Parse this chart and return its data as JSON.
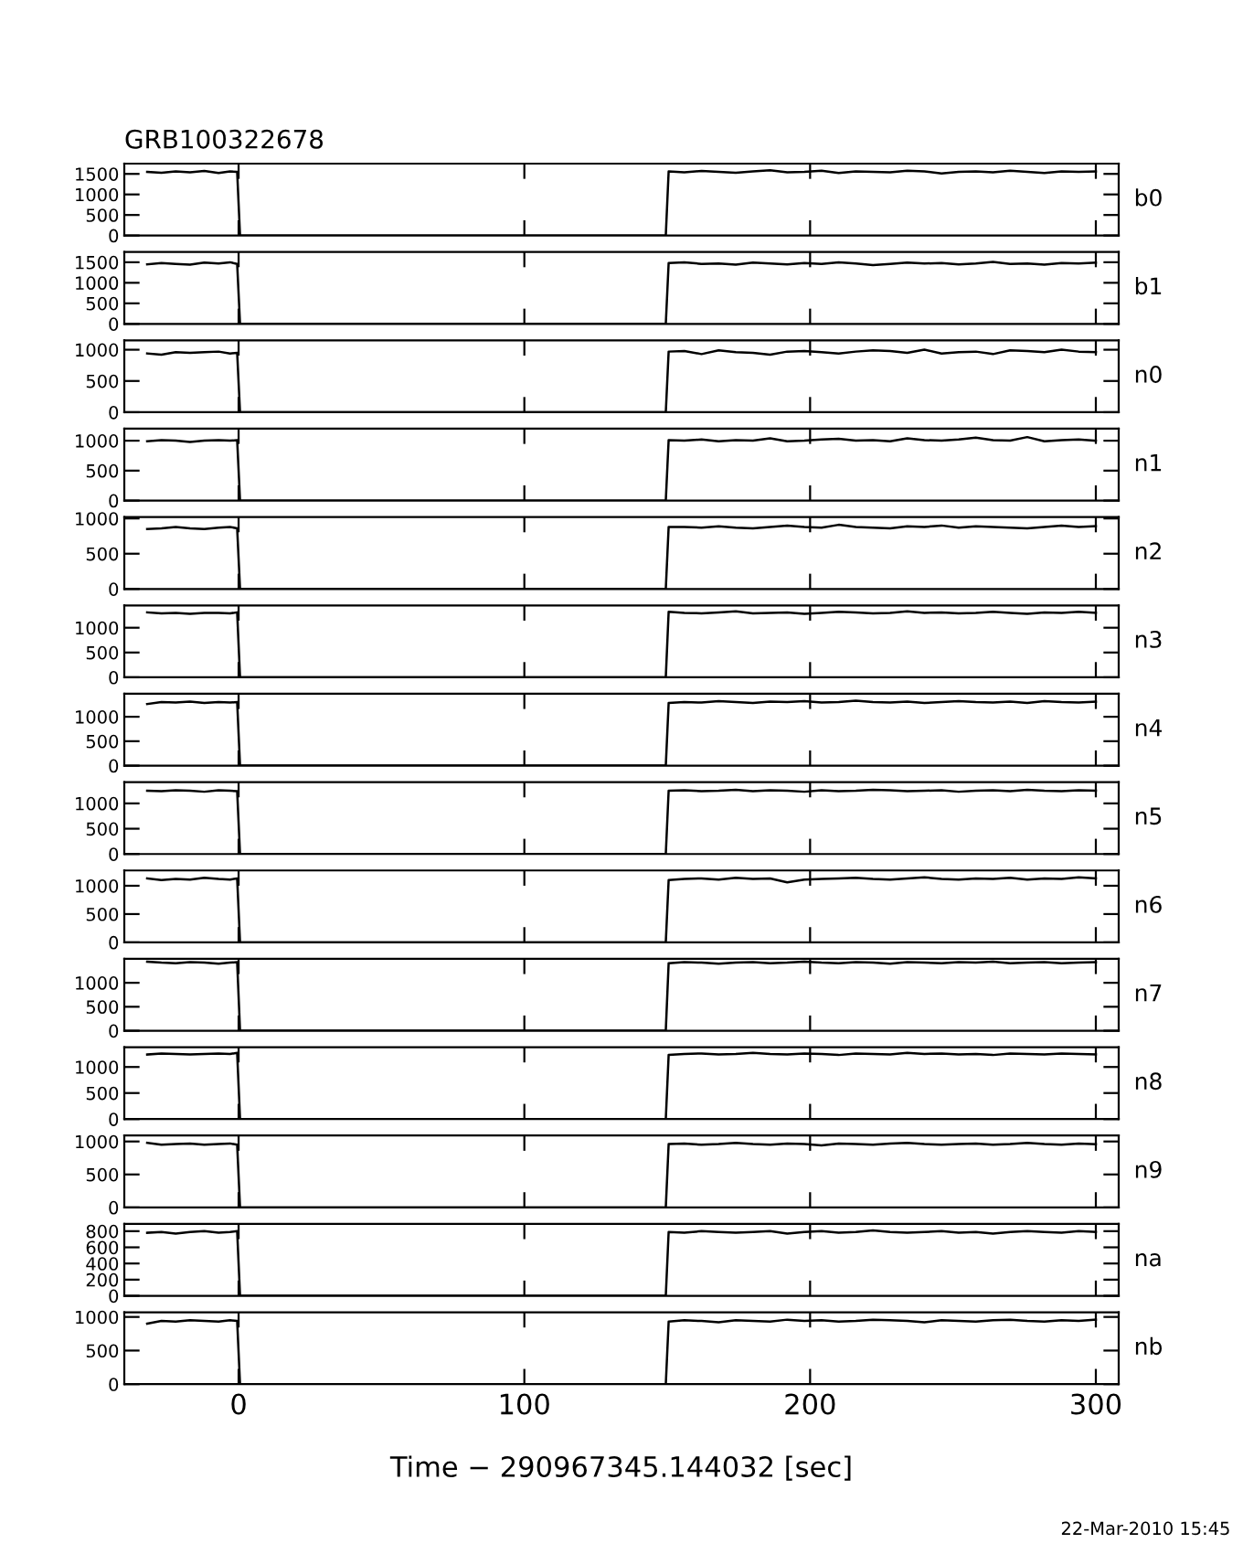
{
  "chart_data": [
    {
      "type": "line",
      "title": "GRB100322678",
      "ylabel": "b0",
      "color": "#000000",
      "tick_labels": "y",
      "xlim": [
        -40,
        308
      ],
      "xticks": [
        0,
        100,
        200,
        300
      ],
      "ylim": [
        0,
        1750
      ],
      "yticks": [
        0,
        500,
        1000,
        1500
      ],
      "x": [
        -32,
        -27,
        -22,
        -17,
        -12,
        -7,
        -3,
        -0.5,
        0.5,
        149.5,
        150.5,
        156,
        162,
        168,
        174,
        180,
        186,
        192,
        198,
        204,
        210,
        216,
        222,
        228,
        234,
        240,
        246,
        252,
        258,
        264,
        270,
        276,
        282,
        288,
        294,
        300
      ],
      "values": [
        1550,
        1530,
        1560,
        1540,
        1570,
        1520,
        1560,
        1550,
        0,
        0,
        1560,
        1540,
        1570,
        1550,
        1530,
        1560,
        1590,
        1540,
        1550,
        1580,
        1520,
        1560,
        1550,
        1540,
        1580,
        1560,
        1510,
        1550,
        1560,
        1540,
        1580,
        1550,
        1520,
        1560,
        1550,
        1560
      ]
    },
    {
      "type": "line",
      "ylabel": "b1",
      "color": "#000000",
      "tick_labels": "y",
      "xlim": [
        -40,
        308
      ],
      "xticks": [
        0,
        100,
        200,
        300
      ],
      "ylim": [
        0,
        1750
      ],
      "yticks": [
        0,
        500,
        1000,
        1500
      ],
      "x": [
        -32,
        -27,
        -22,
        -17,
        -12,
        -7,
        -3,
        -0.5,
        0.5,
        149.5,
        150.5,
        156,
        162,
        168,
        174,
        180,
        186,
        192,
        198,
        204,
        210,
        216,
        222,
        228,
        234,
        240,
        246,
        252,
        258,
        264,
        270,
        276,
        282,
        288,
        294,
        300
      ],
      "values": [
        1450,
        1480,
        1460,
        1440,
        1490,
        1470,
        1500,
        1460,
        0,
        0,
        1480,
        1500,
        1460,
        1470,
        1440,
        1490,
        1470,
        1450,
        1480,
        1460,
        1500,
        1470,
        1430,
        1460,
        1490,
        1470,
        1480,
        1450,
        1470,
        1510,
        1460,
        1470,
        1440,
        1480,
        1470,
        1490
      ]
    },
    {
      "type": "line",
      "ylabel": "n0",
      "color": "#000000",
      "tick_labels": "y",
      "xlim": [
        -40,
        308
      ],
      "xticks": [
        0,
        100,
        200,
        300
      ],
      "ylim": [
        0,
        1150
      ],
      "yticks": [
        0,
        500,
        1000
      ],
      "x": [
        -32,
        -27,
        -22,
        -17,
        -12,
        -7,
        -3,
        -0.5,
        0.5,
        149.5,
        150.5,
        156,
        162,
        168,
        174,
        180,
        186,
        192,
        198,
        204,
        210,
        216,
        222,
        228,
        234,
        240,
        246,
        252,
        258,
        264,
        270,
        276,
        282,
        288,
        294,
        300
      ],
      "values": [
        940,
        920,
        960,
        950,
        960,
        970,
        940,
        950,
        0,
        0,
        970,
        980,
        930,
        990,
        960,
        950,
        920,
        970,
        980,
        960,
        940,
        970,
        990,
        980,
        950,
        1000,
        940,
        960,
        970,
        930,
        990,
        980,
        960,
        1000,
        970,
        960
      ]
    },
    {
      "type": "line",
      "ylabel": "n1",
      "color": "#000000",
      "tick_labels": "y",
      "xlim": [
        -40,
        308
      ],
      "xticks": [
        0,
        100,
        200,
        300
      ],
      "ylim": [
        0,
        1200
      ],
      "yticks": [
        0,
        500,
        1000
      ],
      "x": [
        -32,
        -27,
        -22,
        -17,
        -12,
        -7,
        -3,
        -0.5,
        0.5,
        149.5,
        150.5,
        156,
        162,
        168,
        174,
        180,
        186,
        192,
        198,
        204,
        210,
        216,
        222,
        228,
        234,
        240,
        246,
        252,
        258,
        264,
        270,
        276,
        282,
        288,
        294,
        300
      ],
      "values": [
        990,
        1010,
        1000,
        980,
        1000,
        1010,
        1000,
        1010,
        0,
        0,
        1010,
        1000,
        1020,
        990,
        1010,
        1000,
        1040,
        990,
        1000,
        1020,
        1030,
        1000,
        1010,
        990,
        1040,
        1010,
        1000,
        1020,
        1050,
        1010,
        1000,
        1060,
        990,
        1010,
        1020,
        1000
      ]
    },
    {
      "type": "line",
      "ylabel": "n2",
      "color": "#000000",
      "tick_labels": "y",
      "xlim": [
        -40,
        308
      ],
      "xticks": [
        0,
        100,
        200,
        300
      ],
      "ylim": [
        0,
        1020
      ],
      "yticks": [
        0,
        500,
        1000
      ],
      "x": [
        -32,
        -27,
        -22,
        -17,
        -12,
        -7,
        -3,
        -0.5,
        0.5,
        149.5,
        150.5,
        156,
        162,
        168,
        174,
        180,
        186,
        192,
        198,
        204,
        210,
        216,
        222,
        228,
        234,
        240,
        246,
        252,
        258,
        264,
        270,
        276,
        282,
        288,
        294,
        300
      ],
      "values": [
        850,
        860,
        880,
        860,
        850,
        870,
        880,
        860,
        0,
        0,
        880,
        880,
        870,
        890,
        870,
        860,
        880,
        900,
        880,
        870,
        910,
        880,
        870,
        860,
        890,
        880,
        900,
        870,
        890,
        880,
        870,
        860,
        880,
        900,
        880,
        890
      ]
    },
    {
      "type": "line",
      "ylabel": "n3",
      "color": "#000000",
      "tick_labels": "y",
      "xlim": [
        -40,
        308
      ],
      "xticks": [
        0,
        100,
        200,
        300
      ],
      "ylim": [
        0,
        1450
      ],
      "yticks": [
        0,
        500,
        1000
      ],
      "x": [
        -32,
        -27,
        -22,
        -17,
        -12,
        -7,
        -3,
        -0.5,
        0.5,
        149.5,
        150.5,
        156,
        162,
        168,
        174,
        180,
        186,
        192,
        198,
        204,
        210,
        216,
        222,
        228,
        234,
        240,
        246,
        252,
        258,
        264,
        270,
        276,
        282,
        288,
        294,
        300
      ],
      "values": [
        1310,
        1290,
        1300,
        1280,
        1300,
        1300,
        1290,
        1310,
        0,
        0,
        1320,
        1300,
        1290,
        1310,
        1330,
        1290,
        1300,
        1310,
        1280,
        1300,
        1320,
        1310,
        1290,
        1300,
        1330,
        1300,
        1310,
        1290,
        1300,
        1320,
        1300,
        1280,
        1310,
        1300,
        1320,
        1300
      ]
    },
    {
      "type": "line",
      "ylabel": "n4",
      "color": "#000000",
      "tick_labels": "y",
      "xlim": [
        -40,
        308
      ],
      "xticks": [
        0,
        100,
        200,
        300
      ],
      "ylim": [
        0,
        1470
      ],
      "yticks": [
        0,
        500,
        1000
      ],
      "x": [
        -32,
        -27,
        -22,
        -17,
        -12,
        -7,
        -3,
        -0.5,
        0.5,
        149.5,
        150.5,
        156,
        162,
        168,
        174,
        180,
        186,
        192,
        198,
        204,
        210,
        216,
        222,
        228,
        234,
        240,
        246,
        252,
        258,
        264,
        270,
        276,
        282,
        288,
        294,
        300
      ],
      "values": [
        1260,
        1300,
        1290,
        1310,
        1280,
        1300,
        1290,
        1300,
        0,
        0,
        1280,
        1300,
        1290,
        1320,
        1300,
        1280,
        1310,
        1300,
        1320,
        1290,
        1300,
        1330,
        1300,
        1290,
        1310,
        1280,
        1300,
        1320,
        1300,
        1290,
        1310,
        1280,
        1320,
        1300,
        1290,
        1310
      ]
    },
    {
      "type": "line",
      "ylabel": "n5",
      "color": "#000000",
      "tick_labels": "y",
      "xlim": [
        -40,
        308
      ],
      "xticks": [
        0,
        100,
        200,
        300
      ],
      "ylim": [
        0,
        1420
      ],
      "yticks": [
        0,
        500,
        1000
      ],
      "x": [
        -32,
        -27,
        -22,
        -17,
        -12,
        -7,
        -3,
        -0.5,
        0.5,
        149.5,
        150.5,
        156,
        162,
        168,
        174,
        180,
        186,
        192,
        198,
        204,
        210,
        216,
        222,
        228,
        234,
        240,
        246,
        252,
        258,
        264,
        270,
        276,
        282,
        288,
        294,
        300
      ],
      "values": [
        1250,
        1240,
        1260,
        1250,
        1230,
        1260,
        1250,
        1240,
        0,
        0,
        1250,
        1260,
        1240,
        1250,
        1270,
        1240,
        1260,
        1250,
        1230,
        1260,
        1240,
        1250,
        1270,
        1260,
        1240,
        1250,
        1260,
        1230,
        1250,
        1260,
        1240,
        1270,
        1250,
        1240,
        1260,
        1250
      ]
    },
    {
      "type": "line",
      "ylabel": "n6",
      "color": "#000000",
      "tick_labels": "y",
      "xlim": [
        -40,
        308
      ],
      "xticks": [
        0,
        100,
        200,
        300
      ],
      "ylim": [
        0,
        1270
      ],
      "yticks": [
        0,
        500,
        1000
      ],
      "x": [
        -32,
        -27,
        -22,
        -17,
        -12,
        -7,
        -3,
        -0.5,
        0.5,
        149.5,
        150.5,
        156,
        162,
        168,
        174,
        180,
        186,
        192,
        198,
        204,
        210,
        216,
        222,
        228,
        234,
        240,
        246,
        252,
        258,
        264,
        270,
        276,
        282,
        288,
        294,
        300
      ],
      "values": [
        1130,
        1100,
        1120,
        1110,
        1140,
        1120,
        1110,
        1130,
        0,
        0,
        1100,
        1120,
        1130,
        1110,
        1140,
        1120,
        1130,
        1060,
        1110,
        1120,
        1130,
        1140,
        1120,
        1110,
        1130,
        1150,
        1120,
        1110,
        1130,
        1120,
        1140,
        1110,
        1130,
        1120,
        1150,
        1130
      ]
    },
    {
      "type": "line",
      "ylabel": "n7",
      "color": "#000000",
      "tick_labels": "y",
      "xlim": [
        -40,
        308
      ],
      "xticks": [
        0,
        100,
        200,
        300
      ],
      "ylim": [
        0,
        1500
      ],
      "yticks": [
        0,
        500,
        1000
      ],
      "x": [
        -32,
        -27,
        -22,
        -17,
        -12,
        -7,
        -3,
        -0.5,
        0.5,
        149.5,
        150.5,
        156,
        162,
        168,
        174,
        180,
        186,
        192,
        198,
        204,
        210,
        216,
        222,
        228,
        234,
        240,
        246,
        252,
        258,
        264,
        270,
        276,
        282,
        288,
        294,
        300
      ],
      "values": [
        1440,
        1420,
        1410,
        1430,
        1420,
        1400,
        1420,
        1430,
        0,
        0,
        1410,
        1430,
        1420,
        1400,
        1420,
        1430,
        1410,
        1420,
        1440,
        1420,
        1410,
        1430,
        1420,
        1400,
        1430,
        1420,
        1410,
        1430,
        1420,
        1440,
        1410,
        1420,
        1430,
        1410,
        1420,
        1430
      ]
    },
    {
      "type": "line",
      "ylabel": "n8",
      "color": "#000000",
      "tick_labels": "y",
      "xlim": [
        -40,
        308
      ],
      "xticks": [
        0,
        100,
        200,
        300
      ],
      "ylim": [
        0,
        1380
      ],
      "yticks": [
        0,
        500,
        1000
      ],
      "x": [
        -32,
        -27,
        -22,
        -17,
        -12,
        -7,
        -3,
        -0.5,
        0.5,
        149.5,
        150.5,
        156,
        162,
        168,
        174,
        180,
        186,
        192,
        198,
        204,
        210,
        216,
        222,
        228,
        234,
        240,
        246,
        252,
        258,
        264,
        270,
        276,
        282,
        288,
        294,
        300
      ],
      "values": [
        1240,
        1260,
        1250,
        1240,
        1250,
        1260,
        1250,
        1270,
        0,
        0,
        1230,
        1250,
        1260,
        1240,
        1250,
        1270,
        1250,
        1240,
        1260,
        1250,
        1230,
        1260,
        1250,
        1240,
        1270,
        1250,
        1260,
        1240,
        1250,
        1230,
        1260,
        1250,
        1240,
        1260,
        1250,
        1240
      ]
    },
    {
      "type": "line",
      "ylabel": "n9",
      "color": "#000000",
      "tick_labels": "y",
      "xlim": [
        -40,
        308
      ],
      "xticks": [
        0,
        100,
        200,
        300
      ],
      "ylim": [
        0,
        1090
      ],
      "yticks": [
        0,
        500,
        1000
      ],
      "x": [
        -32,
        -27,
        -22,
        -17,
        -12,
        -7,
        -3,
        -0.5,
        0.5,
        149.5,
        150.5,
        156,
        162,
        168,
        174,
        180,
        186,
        192,
        198,
        204,
        210,
        216,
        222,
        228,
        234,
        240,
        246,
        252,
        258,
        264,
        270,
        276,
        282,
        288,
        294,
        300
      ],
      "values": [
        980,
        950,
        960,
        970,
        950,
        960,
        970,
        950,
        0,
        0,
        960,
        970,
        950,
        960,
        980,
        960,
        950,
        970,
        960,
        940,
        970,
        960,
        950,
        970,
        980,
        960,
        950,
        960,
        970,
        950,
        960,
        980,
        960,
        950,
        970,
        960
      ]
    },
    {
      "type": "line",
      "ylabel": "na",
      "color": "#000000",
      "tick_labels": "y",
      "xlim": [
        -40,
        308
      ],
      "xticks": [
        0,
        100,
        200,
        300
      ],
      "ylim": [
        0,
        890
      ],
      "yticks": [
        0,
        200,
        400,
        600,
        800
      ],
      "x": [
        -32,
        -27,
        -22,
        -17,
        -12,
        -7,
        -3,
        -0.5,
        0.5,
        149.5,
        150.5,
        156,
        162,
        168,
        174,
        180,
        186,
        192,
        198,
        204,
        210,
        216,
        222,
        228,
        234,
        240,
        246,
        252,
        258,
        264,
        270,
        276,
        282,
        288,
        294,
        300
      ],
      "values": [
        780,
        790,
        770,
        790,
        800,
        780,
        790,
        800,
        0,
        0,
        790,
        780,
        800,
        790,
        780,
        790,
        800,
        770,
        790,
        800,
        780,
        790,
        810,
        790,
        780,
        790,
        800,
        780,
        790,
        770,
        790,
        800,
        790,
        780,
        800,
        790
      ]
    },
    {
      "type": "line",
      "ylabel": "nb",
      "xlabel": "Time − 290967345.144032 [sec]",
      "annotations": [
        "22-Mar-2010 15:45"
      ],
      "color": "#000000",
      "xlim": [
        -40,
        308
      ],
      "xticks": [
        0,
        100,
        200,
        300
      ],
      "ylim": [
        0,
        1070
      ],
      "yticks": [
        0,
        500,
        1000
      ],
      "x": [
        -32,
        -27,
        -22,
        -17,
        -12,
        -7,
        -3,
        -0.5,
        0.5,
        149.5,
        150.5,
        156,
        162,
        168,
        174,
        180,
        186,
        192,
        198,
        204,
        210,
        216,
        222,
        228,
        234,
        240,
        246,
        252,
        258,
        264,
        270,
        276,
        282,
        288,
        294,
        300
      ],
      "values": [
        900,
        940,
        930,
        950,
        940,
        930,
        950,
        940,
        0,
        0,
        930,
        950,
        940,
        920,
        950,
        940,
        930,
        960,
        940,
        950,
        930,
        940,
        960,
        950,
        940,
        920,
        950,
        940,
        930,
        950,
        960,
        940,
        930,
        950,
        940,
        960
      ]
    }
  ]
}
